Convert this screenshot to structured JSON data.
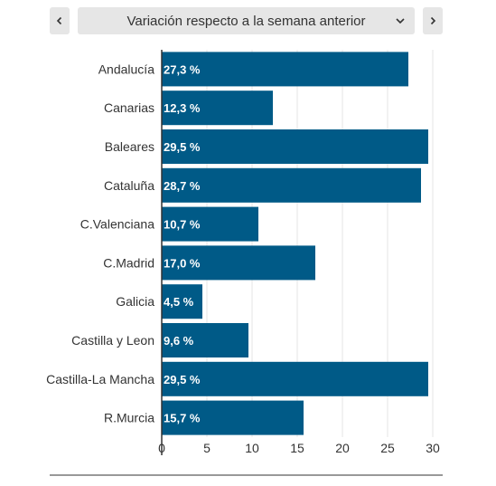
{
  "selector": {
    "label": "Variación respecto a la semana anterior",
    "prev_icon": "chevron-left-icon",
    "next_icon": "chevron-right-icon",
    "dropdown_icon": "chevron-down-icon"
  },
  "colors": {
    "bar": "#005a87",
    "bar_label": "#ffffff",
    "grid": "#e6e6e6",
    "axis": "#333333",
    "button_bg": "#e6e6e6"
  },
  "chart_data": {
    "type": "bar",
    "orientation": "horizontal",
    "categories": [
      "Andalucía",
      "Canarias",
      "Baleares",
      "Cataluña",
      "C.Valenciana",
      "C.Madrid",
      "Galicia",
      "Castilla y Leon",
      "Castilla-La Mancha",
      "R.Murcia"
    ],
    "values": [
      27.3,
      12.3,
      29.5,
      28.7,
      10.7,
      17.0,
      4.5,
      9.6,
      29.5,
      15.7
    ],
    "data_labels": [
      "27,3 %",
      "12,3 %",
      "29,5 %",
      "28,7 %",
      "10,7 %",
      "17,0 %",
      "4,5 %",
      "9,6 %",
      "29,5 %",
      "15,7 %"
    ],
    "xlim": [
      0,
      30
    ],
    "x_ticks": [
      0,
      5,
      10,
      15,
      20,
      25,
      30
    ],
    "grid": true,
    "title": "",
    "xlabel": "",
    "ylabel": ""
  }
}
